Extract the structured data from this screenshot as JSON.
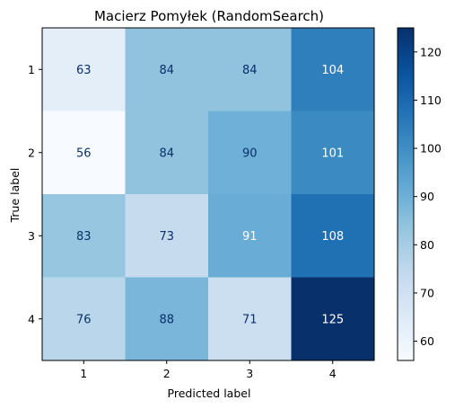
{
  "chart_data": {
    "type": "heatmap",
    "title": "Macierz Pomyłek (RandomSearch)",
    "xlabel": "Predicted label",
    "ylabel": "True label",
    "x_categories": [
      "1",
      "2",
      "3",
      "4"
    ],
    "y_categories": [
      "1",
      "2",
      "3",
      "4"
    ],
    "values": [
      [
        63,
        84,
        84,
        104
      ],
      [
        56,
        84,
        90,
        101
      ],
      [
        83,
        73,
        91,
        108
      ],
      [
        76,
        88,
        71,
        125
      ]
    ],
    "colormap": "Blues",
    "colorbar": {
      "range": [
        56,
        125
      ],
      "ticks": [
        60,
        70,
        80,
        90,
        100,
        110,
        120
      ]
    },
    "grid": false,
    "colors": {
      "low": "#f7fbff",
      "high": "#08306b"
    }
  }
}
